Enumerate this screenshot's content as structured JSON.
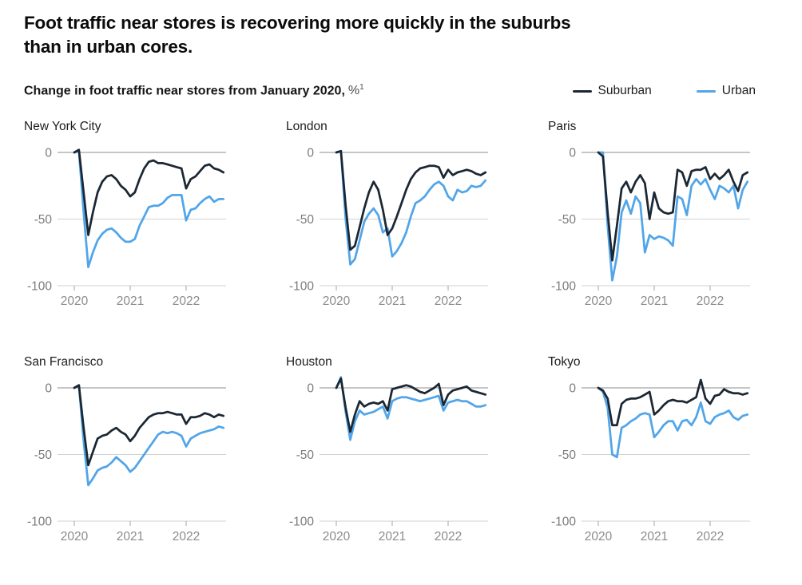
{
  "header": {
    "title_line1": "Foot traffic near stores is recovering more quickly in the suburbs",
    "title_line2": "than in urban cores."
  },
  "subtitle": {
    "text_bold": "Change in foot traffic near stores from January 2020,",
    "unit": "%",
    "footnote_marker": "1"
  },
  "legend": {
    "items": [
      {
        "label": "Suburban",
        "color": "#1b2733"
      },
      {
        "label": "Urban",
        "color": "#51a5e8"
      }
    ]
  },
  "colors": {
    "axis_zero_line": "#8c8c8c",
    "grid_line": "#d2d2d2",
    "tick_mark": "#a3a3a3",
    "axis_text": "#7b7b7b"
  },
  "chart_data": [
    {
      "type": "line",
      "title": "New York City",
      "x_start": "Jan 2020",
      "x_interval": "monthly",
      "x_tick_labels": [
        "2020",
        "2021",
        "2022"
      ],
      "x_tick_months": [
        0,
        12,
        24
      ],
      "y_ticks": [
        0,
        -50,
        -100
      ],
      "ylim": [
        -100,
        10
      ],
      "series": [
        {
          "name": "Suburban",
          "values": [
            0,
            2,
            -30,
            -62,
            -45,
            -30,
            -22,
            -18,
            -17,
            -20,
            -25,
            -28,
            -33,
            -30,
            -20,
            -12,
            -7,
            -6,
            -8,
            -8,
            -9,
            -10,
            -11,
            -12,
            -27,
            -20,
            -18,
            -14,
            -10,
            -9,
            -12,
            -13,
            -15
          ]
        },
        {
          "name": "Urban",
          "values": [
            0,
            1,
            -45,
            -86,
            -75,
            -66,
            -61,
            -58,
            -57,
            -60,
            -64,
            -67,
            -67,
            -65,
            -55,
            -48,
            -41,
            -40,
            -40,
            -38,
            -34,
            -32,
            -32,
            -32,
            -51,
            -43,
            -42,
            -38,
            -35,
            -33,
            -37,
            -35,
            -35
          ]
        }
      ]
    },
    {
      "type": "line",
      "title": "London",
      "x_start": "Jan 2020",
      "x_interval": "monthly",
      "x_tick_labels": [
        "2020",
        "2021",
        "2022"
      ],
      "x_tick_months": [
        0,
        12,
        24
      ],
      "y_ticks": [
        0,
        -50,
        -100
      ],
      "ylim": [
        -100,
        10
      ],
      "series": [
        {
          "name": "Suburban",
          "values": [
            0,
            1,
            -40,
            -73,
            -70,
            -56,
            -42,
            -30,
            -22,
            -28,
            -43,
            -62,
            -57,
            -48,
            -38,
            -28,
            -20,
            -15,
            -12,
            -11,
            -10,
            -10,
            -11,
            -19,
            -13,
            -17,
            -15,
            -14,
            -13,
            -14,
            -16,
            -17,
            -15
          ]
        },
        {
          "name": "Urban",
          "values": [
            0,
            1,
            -50,
            -84,
            -80,
            -66,
            -52,
            -46,
            -42,
            -47,
            -60,
            -57,
            -78,
            -74,
            -68,
            -60,
            -48,
            -38,
            -36,
            -33,
            -28,
            -24,
            -22,
            -25,
            -33,
            -36,
            -28,
            -30,
            -29,
            -25,
            -26,
            -25,
            -21
          ]
        }
      ]
    },
    {
      "type": "line",
      "title": "Paris",
      "x_start": "Jan 2020",
      "x_interval": "monthly",
      "x_tick_labels": [
        "2020",
        "2021",
        "2022"
      ],
      "x_tick_months": [
        0,
        12,
        24
      ],
      "y_ticks": [
        0,
        -50,
        -100
      ],
      "ylim": [
        -100,
        10
      ],
      "series": [
        {
          "name": "Suburban",
          "values": [
            0,
            -3,
            -45,
            -81,
            -55,
            -27,
            -22,
            -30,
            -22,
            -17,
            -23,
            -50,
            -30,
            -42,
            -45,
            -46,
            -45,
            -13,
            -15,
            -25,
            -14,
            -13,
            -13,
            -11,
            -20,
            -16,
            -20,
            -17,
            -13,
            -22,
            -29,
            -17,
            -15
          ]
        },
        {
          "name": "Urban",
          "values": [
            0,
            0,
            -55,
            -96,
            -78,
            -45,
            -36,
            -46,
            -33,
            -38,
            -75,
            -62,
            -65,
            -63,
            -64,
            -66,
            -70,
            -33,
            -35,
            -47,
            -25,
            -20,
            -24,
            -20,
            -28,
            -35,
            -25,
            -27,
            -30,
            -25,
            -42,
            -28,
            -22
          ]
        }
      ]
    },
    {
      "type": "line",
      "title": "San Francisco",
      "x_start": "Jan 2020",
      "x_interval": "monthly",
      "x_tick_labels": [
        "2020",
        "2021",
        "2022"
      ],
      "x_tick_months": [
        0,
        12,
        24
      ],
      "y_ticks": [
        0,
        -50,
        -100
      ],
      "ylim": [
        -100,
        10
      ],
      "series": [
        {
          "name": "Suburban",
          "values": [
            0,
            2,
            -30,
            -58,
            -48,
            -38,
            -36,
            -35,
            -32,
            -30,
            -33,
            -35,
            -40,
            -36,
            -30,
            -26,
            -22,
            -20,
            -19,
            -19,
            -18,
            -19,
            -20,
            -20,
            -27,
            -22,
            -22,
            -21,
            -19,
            -20,
            -22,
            -20,
            -21
          ]
        },
        {
          "name": "Urban",
          "values": [
            0,
            2,
            -40,
            -73,
            -68,
            -62,
            -60,
            -59,
            -56,
            -52,
            -55,
            -58,
            -63,
            -60,
            -55,
            -50,
            -45,
            -40,
            -35,
            -33,
            -34,
            -33,
            -34,
            -36,
            -44,
            -38,
            -36,
            -34,
            -33,
            -32,
            -31,
            -29,
            -30
          ]
        }
      ]
    },
    {
      "type": "line",
      "title": "Houston",
      "x_start": "Jan 2020",
      "x_interval": "monthly",
      "x_tick_labels": [
        "2020",
        "2021",
        "2022"
      ],
      "x_tick_months": [
        0,
        12,
        24
      ],
      "y_ticks": [
        0,
        -50,
        -100
      ],
      "ylim": [
        -100,
        10
      ],
      "series": [
        {
          "name": "Suburban",
          "values": [
            0,
            7,
            -15,
            -33,
            -20,
            -10,
            -14,
            -12,
            -11,
            -12,
            -10,
            -17,
            -1,
            0,
            1,
            2,
            1,
            -1,
            -3,
            -4,
            -2,
            0,
            3,
            -13,
            -5,
            -2,
            -1,
            0,
            1,
            -2,
            -3,
            -4,
            -5
          ]
        },
        {
          "name": "Urban",
          "values": [
            0,
            8,
            -18,
            -39,
            -25,
            -17,
            -20,
            -19,
            -18,
            -16,
            -14,
            -23,
            -10,
            -8,
            -7,
            -7,
            -8,
            -9,
            -10,
            -9,
            -8,
            -7,
            -6,
            -17,
            -11,
            -10,
            -9,
            -10,
            -10,
            -12,
            -14,
            -14,
            -13
          ]
        }
      ]
    },
    {
      "type": "line",
      "title": "Tokyo",
      "x_start": "Jan 2020",
      "x_interval": "monthly",
      "x_tick_labels": [
        "2020",
        "2021",
        "2022"
      ],
      "x_tick_months": [
        0,
        12,
        24
      ],
      "y_ticks": [
        0,
        -50,
        -100
      ],
      "ylim": [
        -100,
        10
      ],
      "series": [
        {
          "name": "Suburban",
          "values": [
            0,
            -2,
            -8,
            -28,
            -28,
            -12,
            -9,
            -8,
            -8,
            -7,
            -5,
            -3,
            -20,
            -17,
            -13,
            -10,
            -9,
            -10,
            -10,
            -11,
            -9,
            -7,
            6,
            -8,
            -12,
            -6,
            -5,
            -1,
            -3,
            -4,
            -4,
            -5,
            -4
          ]
        },
        {
          "name": "Urban",
          "values": [
            0,
            -3,
            -15,
            -50,
            -52,
            -30,
            -28,
            -25,
            -23,
            -20,
            -19,
            -20,
            -37,
            -33,
            -28,
            -25,
            -25,
            -32,
            -25,
            -24,
            -28,
            -22,
            -11,
            -25,
            -27,
            -22,
            -20,
            -19,
            -17,
            -22,
            -24,
            -21,
            -20
          ]
        }
      ]
    }
  ]
}
